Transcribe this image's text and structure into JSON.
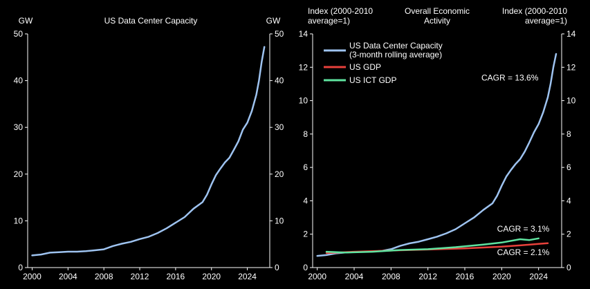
{
  "chart_data": [
    {
      "type": "line",
      "title": "US Data Center Capacity",
      "ylabel_left": "GW",
      "ylabel_right": "GW",
      "xlim": [
        1999.5,
        2026.5
      ],
      "ylim": [
        0,
        50
      ],
      "xticks": [
        2000,
        2004,
        2008,
        2012,
        2016,
        2020,
        2024
      ],
      "yticks": [
        0,
        10,
        20,
        30,
        40,
        50
      ],
      "grid": false,
      "series": [
        {
          "color": "#9ec3f0",
          "x": [
            2000,
            2001,
            2002,
            2003,
            2004,
            2005,
            2006,
            2007,
            2008,
            2009,
            2010,
            2011,
            2012,
            2013,
            2014,
            2015,
            2016,
            2017,
            2018,
            2019,
            2019.5,
            2020,
            2020.5,
            2021,
            2021.5,
            2022,
            2022.5,
            2023,
            2023.5,
            2024,
            2024.5,
            2025,
            2025.3,
            2025.6,
            2025.9
          ],
          "values": [
            2.6,
            2.8,
            3.2,
            3.3,
            3.4,
            3.4,
            3.5,
            3.7,
            3.9,
            4.6,
            5.1,
            5.5,
            6.1,
            6.6,
            7.4,
            8.4,
            9.6,
            10.8,
            12.6,
            14.0,
            15.6,
            17.8,
            19.8,
            21.2,
            22.5,
            23.5,
            25.2,
            27.0,
            29.5,
            31.0,
            33.5,
            37.0,
            40.0,
            44.0,
            47.2
          ]
        }
      ]
    },
    {
      "type": "line",
      "title": "Overall Economic Activity",
      "ylabel_left": "Index (2000-2010 average=1)",
      "ylabel_right": "Index (2000-2010 average=1)",
      "xlim": [
        1999.5,
        2026.5
      ],
      "ylim": [
        0,
        14
      ],
      "xticks": [
        2000,
        2004,
        2008,
        2012,
        2016,
        2020,
        2024
      ],
      "yticks": [
        0,
        2,
        4,
        6,
        8,
        10,
        12,
        14
      ],
      "grid": false,
      "legend": "top-left",
      "series": [
        {
          "name": "US Data Center Capacity (3-month rolling average)",
          "color": "#9ec3f0",
          "x": [
            2000,
            2001,
            2002,
            2003,
            2004,
            2005,
            2006,
            2007,
            2008,
            2009,
            2010,
            2011,
            2012,
            2013,
            2014,
            2015,
            2016,
            2017,
            2018,
            2019,
            2019.5,
            2020,
            2020.5,
            2021,
            2021.5,
            2022,
            2022.5,
            2023,
            2023.5,
            2024,
            2024.5,
            2025,
            2025.3,
            2025.6,
            2025.9
          ],
          "values": [
            0.7,
            0.75,
            0.85,
            0.9,
            0.93,
            0.95,
            0.97,
            1.0,
            1.1,
            1.3,
            1.45,
            1.55,
            1.7,
            1.85,
            2.05,
            2.3,
            2.65,
            3.0,
            3.45,
            3.85,
            4.3,
            4.9,
            5.45,
            5.85,
            6.2,
            6.5,
            6.95,
            7.5,
            8.1,
            8.6,
            9.3,
            10.2,
            11.0,
            12.0,
            12.8
          ]
        },
        {
          "name": "US GDP",
          "color": "#e8413b",
          "x": [
            2001,
            2004,
            2008,
            2012,
            2016,
            2020,
            2022,
            2024,
            2025
          ],
          "values": [
            0.87,
            0.95,
            1.02,
            1.08,
            1.15,
            1.25,
            1.33,
            1.42,
            1.46
          ]
        },
        {
          "name": "US ICT GDP",
          "color": "#5fe4a0",
          "x": [
            2001,
            2003,
            2006,
            2009,
            2012,
            2015,
            2018,
            2020,
            2022,
            2023,
            2024
          ],
          "values": [
            0.95,
            0.9,
            0.95,
            1.05,
            1.1,
            1.22,
            1.38,
            1.5,
            1.7,
            1.65,
            1.75
          ]
        }
      ],
      "annotations": [
        {
          "text": "CAGR = 13.6%",
          "x": 2017.8,
          "y": 11.2
        },
        {
          "text": "CAGR = 3.1%",
          "x": 2019.5,
          "y": 2.15
        },
        {
          "text": "CAGR = 2.1%",
          "x": 2019.5,
          "y": 0.75
        }
      ]
    }
  ]
}
